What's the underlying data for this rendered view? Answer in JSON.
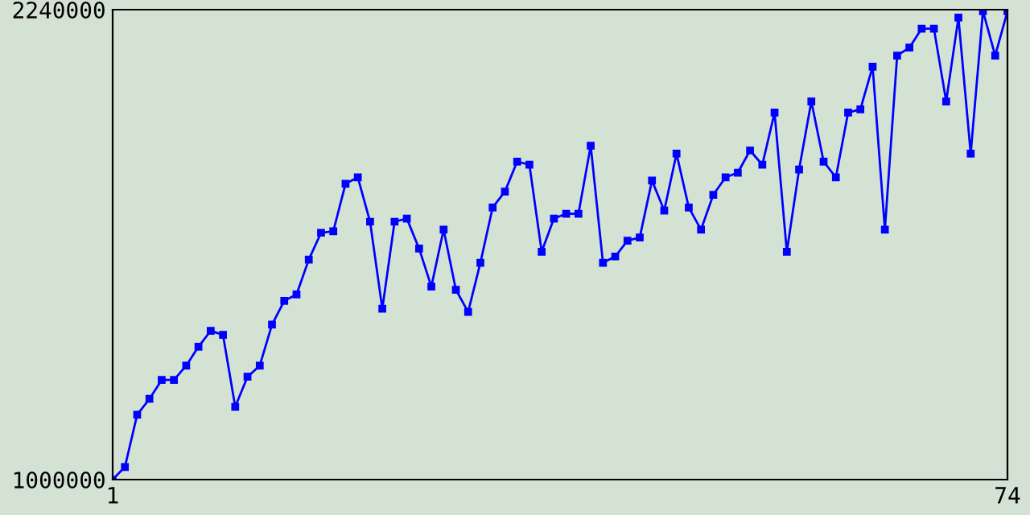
{
  "chart_data": {
    "type": "line",
    "x": [
      1,
      2,
      3,
      4,
      5,
      6,
      7,
      8,
      9,
      10,
      11,
      12,
      13,
      14,
      15,
      16,
      17,
      18,
      19,
      20,
      21,
      22,
      23,
      24,
      25,
      26,
      27,
      28,
      29,
      30,
      31,
      32,
      33,
      34,
      35,
      36,
      37,
      38,
      39,
      40,
      41,
      42,
      43,
      44,
      45,
      46,
      47,
      48,
      49,
      50,
      51,
      52,
      53,
      54,
      55,
      56,
      57,
      58,
      59,
      60,
      61,
      62,
      63,
      64,
      65,
      66,
      67,
      68,
      69,
      70,
      71,
      72,
      73,
      74
    ],
    "series": [
      {
        "color": "#0000ff",
        "values": [
          1000000,
          1033400,
          1171200,
          1212900,
          1263000,
          1263000,
          1300600,
          1350700,
          1392500,
          1382000,
          1192100,
          1271400,
          1300600,
          1409200,
          1471800,
          1488500,
          1580400,
          1651300,
          1655500,
          1780700,
          1797400,
          1680500,
          1450900,
          1680500,
          1688900,
          1609500,
          1509400,
          1659700,
          1501000,
          1442600,
          1572000,
          1718100,
          1759900,
          1839200,
          1830800,
          1601200,
          1688900,
          1701400,
          1701400,
          1880900,
          1572000,
          1588700,
          1630400,
          1638800,
          1789100,
          1709800,
          1860100,
          1718100,
          1659700,
          1751500,
          1797400,
          1810000,
          1868400,
          1830800,
          1968600,
          1601200,
          1818300,
          1997800,
          1839200,
          1797400,
          1968600,
          1977000,
          2089700,
          1659700,
          2118900,
          2139800,
          2189900,
          2189900,
          1997800,
          2219100,
          1860100,
          2235800,
          2118900,
          2235800
        ]
      }
    ],
    "xlim": [
      1,
      74
    ],
    "ylim": [
      1000000,
      2240000
    ],
    "xticks": [
      1,
      74
    ],
    "yticks": [
      1000000,
      2240000
    ],
    "marker": "square",
    "line_style": "solid"
  }
}
